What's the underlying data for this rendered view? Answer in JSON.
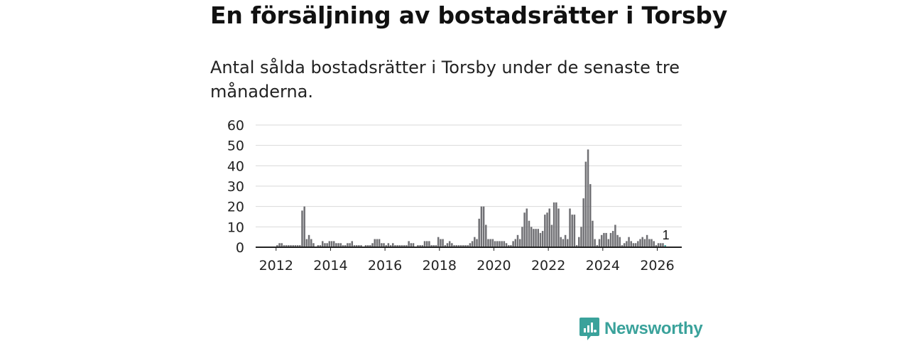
{
  "title": "En försäljning av bostadsrätter i Torsby",
  "subtitle": "Antal sålda bostadsrätter i Torsby under de senaste tre månaderna.",
  "brand": {
    "name": "Newsworthy",
    "color": "#3aa29b",
    "icon": "newsworthy-logo-icon"
  },
  "colors": {
    "bar": "#707074",
    "highlight": "#3aa29b",
    "grid": "#d9d9d9",
    "axis": "#222222"
  },
  "chart_data": {
    "type": "bar",
    "title": "En försäljning av bostadsrätter i Torsby",
    "ylabel": "",
    "xlabel": "",
    "ylim": [
      0,
      60
    ],
    "yticks": [
      0,
      10,
      20,
      30,
      40,
      50,
      60
    ],
    "xlim": [
      2011.25,
      2026.9
    ],
    "xticks": [
      2012,
      2014,
      2016,
      2018,
      2020,
      2022,
      2024,
      2026
    ],
    "xtick_labels": [
      "2012",
      "2014",
      "2016",
      "2018",
      "2020",
      "2022",
      "2024",
      "2026"
    ],
    "start": {
      "year": 2012,
      "month": 1
    },
    "grid": true,
    "highlight_label": "1",
    "values": [
      1,
      2,
      2,
      1,
      1,
      1,
      1,
      1,
      1,
      1,
      1,
      18,
      20,
      4,
      6,
      4,
      2,
      0,
      1,
      1,
      3,
      2,
      2,
      3,
      3,
      3,
      2,
      2,
      2,
      1,
      1,
      2,
      2,
      3,
      1,
      1,
      1,
      1,
      0,
      1,
      1,
      1,
      2,
      4,
      4,
      4,
      2,
      2,
      1,
      2,
      1,
      2,
      1,
      1,
      1,
      1,
      1,
      1,
      3,
      2,
      2,
      0,
      1,
      1,
      1,
      3,
      3,
      3,
      1,
      1,
      1,
      5,
      4,
      4,
      1,
      2,
      3,
      2,
      1,
      1,
      1,
      1,
      1,
      1,
      1,
      2,
      3,
      5,
      4,
      14,
      20,
      20,
      11,
      4,
      4,
      4,
      3,
      3,
      3,
      3,
      3,
      2,
      1,
      1,
      3,
      4,
      6,
      4,
      10,
      17,
      19,
      13,
      10,
      9,
      9,
      9,
      7,
      8,
      16,
      17,
      19,
      11,
      22,
      22,
      19,
      5,
      4,
      6,
      4,
      19,
      16,
      16,
      1,
      5,
      10,
      24,
      42,
      48,
      31,
      13,
      4,
      1,
      4,
      6,
      7,
      7,
      4,
      7,
      8,
      11,
      6,
      5,
      1,
      2,
      3,
      5,
      3,
      2,
      2,
      3,
      4,
      5,
      4,
      6,
      4,
      4,
      3,
      1,
      2,
      2,
      2,
      1
    ]
  }
}
